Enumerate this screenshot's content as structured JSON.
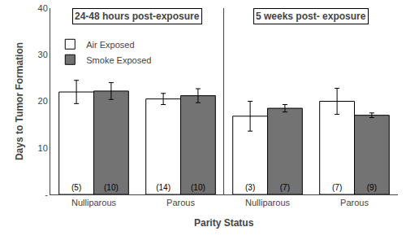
{
  "chart_data": [
    {
      "type": "bar",
      "title": "24-48 hours post-exposure",
      "xlabel": "Parity Status",
      "ylabel": "Days to Tumor Formation",
      "categories": [
        "Nulliparous",
        "Parous"
      ],
      "series": [
        {
          "name": "Air Exposed",
          "color": "#FFFFFF",
          "values": [
            22.0,
            20.5
          ],
          "errors": [
            2.5,
            1.2
          ],
          "n_labels": [
            "(5)",
            "(14)"
          ]
        },
        {
          "name": "Smoke Exposed",
          "color": "#737373",
          "values": [
            22.2,
            21.2
          ],
          "errors": [
            1.8,
            1.5
          ],
          "n_labels": [
            "(10)",
            "(10)"
          ]
        }
      ],
      "ylim": [
        0,
        40
      ],
      "yticks": [
        {
          "value": 0,
          "label": "-"
        },
        10,
        20,
        30,
        40
      ],
      "grid": false,
      "legend": "upper left"
    },
    {
      "type": "bar",
      "title": "5 weeks post- exposure",
      "categories": [
        "Nulliparous",
        "Parous"
      ],
      "series": [
        {
          "name": "Air Exposed",
          "color": "#FFFFFF",
          "values": [
            16.8,
            20.0
          ],
          "errors": [
            3.2,
            2.8
          ],
          "n_labels": [
            "(3)",
            "(7)"
          ]
        },
        {
          "name": "Smoke Exposed",
          "color": "#737373",
          "values": [
            18.5,
            17.0
          ],
          "errors": [
            0.8,
            0.5
          ],
          "n_labels": [
            "(7)",
            "(9)"
          ]
        }
      ],
      "ylim": [
        0,
        40
      ],
      "yticks": [
        0,
        10,
        20,
        30,
        40
      ],
      "grid": false,
      "tick_labels": "x"
    }
  ]
}
